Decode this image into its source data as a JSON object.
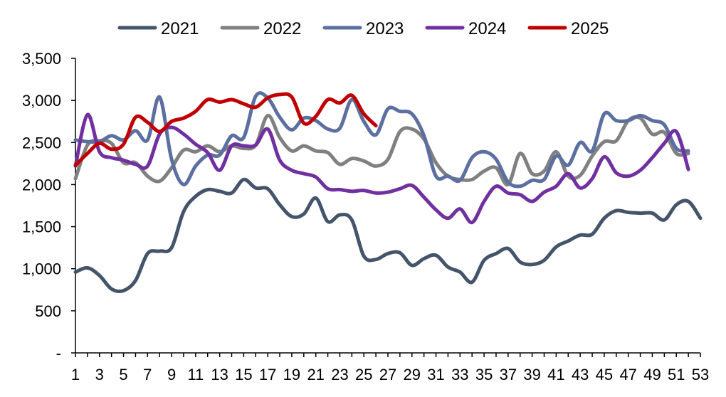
{
  "chart_data": {
    "type": "line",
    "title": "",
    "xlabel": "",
    "ylabel": "",
    "ylim": [
      0,
      3500
    ],
    "y_ticks": [
      0,
      500,
      1000,
      1500,
      2000,
      2500,
      3000,
      3500
    ],
    "y_tick_labels": [
      "-",
      "500",
      "1,000",
      "1,500",
      "2,000",
      "2,500",
      "3,000",
      "3,500"
    ],
    "x_range": [
      1,
      53
    ],
    "x_tick_labels": [
      "1",
      "3",
      "5",
      "7",
      "9",
      "11",
      "13",
      "15",
      "17",
      "19",
      "21",
      "23",
      "25",
      "27",
      "29",
      "31",
      "33",
      "35",
      "37",
      "39",
      "41",
      "43",
      "45",
      "47",
      "49",
      "51",
      "53"
    ],
    "grid": false,
    "legend_position": "top",
    "series": [
      {
        "name": "2021",
        "color": "#44546a",
        "x": [
          1,
          2,
          3,
          4,
          5,
          6,
          7,
          8,
          9,
          10,
          11,
          12,
          13,
          14,
          15,
          16,
          17,
          18,
          19,
          20,
          21,
          22,
          23,
          24,
          25,
          26,
          27,
          28,
          29,
          30,
          31,
          32,
          33,
          34,
          35,
          36,
          37,
          38,
          39,
          40,
          41,
          42,
          43,
          44,
          45,
          46,
          47,
          48,
          49,
          50,
          51,
          52,
          53
        ],
        "values": [
          960,
          1010,
          920,
          760,
          740,
          860,
          1180,
          1210,
          1250,
          1680,
          1860,
          1940,
          1920,
          1900,
          2060,
          1960,
          1950,
          1760,
          1620,
          1650,
          1840,
          1560,
          1640,
          1580,
          1150,
          1110,
          1180,
          1190,
          1040,
          1120,
          1160,
          1020,
          960,
          840,
          1100,
          1180,
          1240,
          1080,
          1050,
          1100,
          1260,
          1330,
          1400,
          1410,
          1600,
          1690,
          1670,
          1660,
          1660,
          1580,
          1760,
          1800,
          1600
        ]
      },
      {
        "name": "2022",
        "color": "#808080",
        "x": [
          1,
          2,
          3,
          4,
          5,
          6,
          7,
          8,
          9,
          10,
          11,
          12,
          13,
          14,
          15,
          16,
          17,
          18,
          19,
          20,
          21,
          22,
          23,
          24,
          25,
          26,
          27,
          28,
          29,
          30,
          31,
          32,
          33,
          34,
          35,
          36,
          37,
          38,
          39,
          40,
          41,
          42,
          43,
          44,
          45,
          46,
          47,
          48,
          49,
          50,
          51,
          52
        ],
        "values": [
          2070,
          2470,
          2520,
          2490,
          2260,
          2260,
          2100,
          2040,
          2200,
          2410,
          2390,
          2460,
          2390,
          2460,
          2430,
          2470,
          2820,
          2560,
          2400,
          2460,
          2400,
          2380,
          2240,
          2310,
          2280,
          2220,
          2300,
          2630,
          2660,
          2540,
          2260,
          2100,
          2060,
          2060,
          2160,
          2200,
          2000,
          2370,
          2130,
          2160,
          2390,
          2100,
          2110,
          2340,
          2510,
          2520,
          2760,
          2790,
          2600,
          2620,
          2370,
          2370
        ]
      },
      {
        "name": "2023",
        "color": "#5b6fa1",
        "x": [
          1,
          2,
          3,
          4,
          5,
          6,
          7,
          8,
          9,
          10,
          11,
          12,
          13,
          14,
          15,
          16,
          17,
          18,
          19,
          20,
          21,
          22,
          23,
          24,
          25,
          26,
          27,
          28,
          29,
          30,
          31,
          32,
          33,
          34,
          35,
          36,
          37,
          38,
          39,
          40,
          41,
          42,
          43,
          44,
          45,
          46,
          47,
          48,
          49,
          50,
          51,
          52
        ],
        "values": [
          2530,
          2510,
          2510,
          2580,
          2530,
          2640,
          2530,
          3040,
          2300,
          2000,
          2220,
          2350,
          2350,
          2580,
          2560,
          3050,
          3030,
          2800,
          2650,
          2790,
          2760,
          2660,
          2670,
          3010,
          2750,
          2590,
          2900,
          2870,
          2840,
          2580,
          2100,
          2100,
          2050,
          2320,
          2390,
          2300,
          2030,
          1980,
          2050,
          2060,
          2340,
          2230,
          2500,
          2400,
          2840,
          2760,
          2760,
          2820,
          2760,
          2710,
          2430,
          2400
        ]
      },
      {
        "name": "2024",
        "color": "#7030a0",
        "x": [
          1,
          2,
          3,
          4,
          5,
          6,
          7,
          8,
          9,
          10,
          11,
          12,
          13,
          14,
          15,
          16,
          17,
          18,
          19,
          20,
          21,
          22,
          23,
          24,
          25,
          26,
          27,
          28,
          29,
          30,
          31,
          32,
          33,
          34,
          35,
          36,
          37,
          38,
          39,
          40,
          41,
          42,
          43,
          44,
          45,
          46,
          47,
          48,
          49,
          50,
          51,
          52
        ],
        "values": [
          2220,
          2830,
          2390,
          2320,
          2290,
          2240,
          2220,
          2600,
          2680,
          2600,
          2480,
          2380,
          2170,
          2460,
          2460,
          2470,
          2660,
          2290,
          2170,
          2130,
          2090,
          1950,
          1940,
          1920,
          1930,
          1900,
          1910,
          1950,
          1990,
          1850,
          1700,
          1600,
          1710,
          1550,
          1800,
          1980,
          1900,
          1880,
          1800,
          1910,
          1980,
          2130,
          1960,
          2070,
          2330,
          2140,
          2100,
          2170,
          2320,
          2490,
          2630,
          2180
        ]
      },
      {
        "name": "2025",
        "color": "#c00000",
        "x": [
          1,
          2,
          3,
          4,
          5,
          6,
          7,
          8,
          9,
          10,
          11,
          12,
          13,
          14,
          15,
          16,
          17,
          18,
          19,
          20,
          21,
          22,
          23,
          24,
          25,
          26
        ],
        "values": [
          2230,
          2370,
          2490,
          2420,
          2480,
          2800,
          2740,
          2630,
          2750,
          2790,
          2870,
          3010,
          2980,
          3010,
          2960,
          2920,
          3030,
          3070,
          3040,
          2730,
          2810,
          3010,
          2970,
          3060,
          2840,
          2700
        ]
      }
    ]
  }
}
